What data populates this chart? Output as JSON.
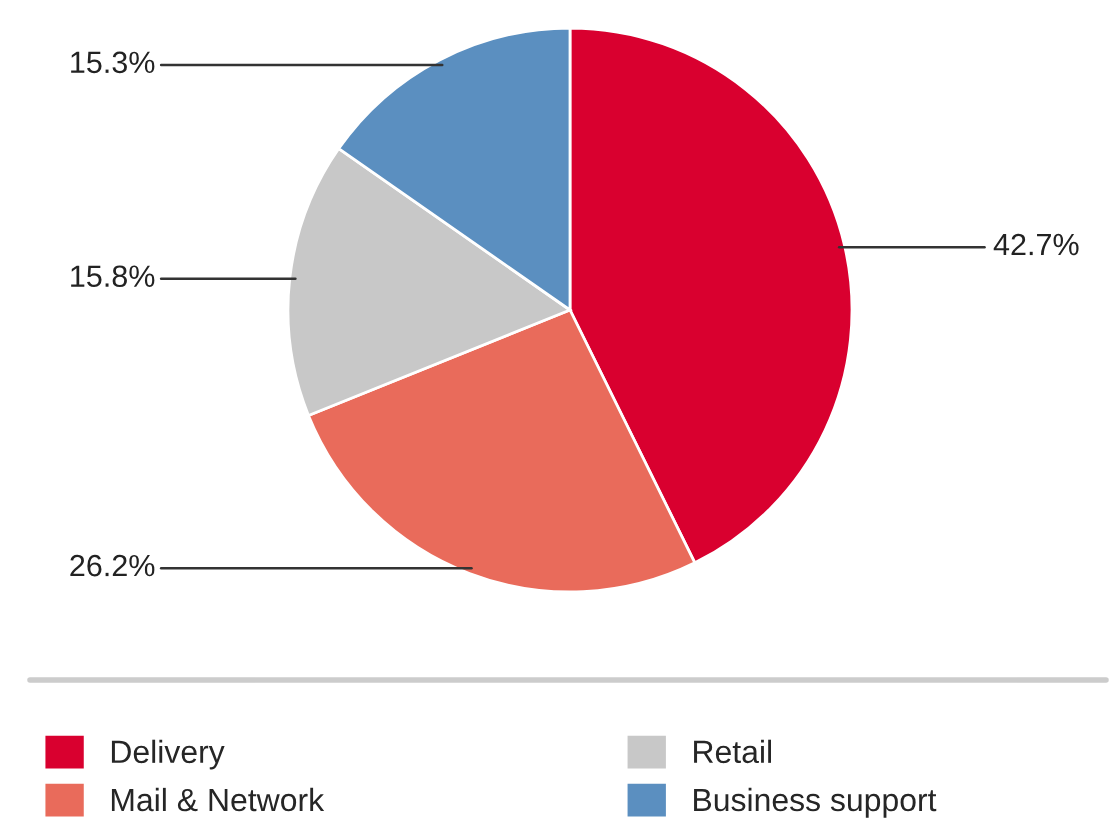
{
  "chart_data": {
    "type": "pie",
    "categories": [
      "Delivery",
      "Mail & Network",
      "Retail",
      "Business support"
    ],
    "values": [
      42.7,
      26.2,
      15.8,
      15.3
    ],
    "colors": [
      "#d9002f",
      "#e96b5b",
      "#c8c8c8",
      "#5b8fc0"
    ],
    "value_labels": [
      "42.7%",
      "26.2%",
      "15.8%",
      "15.3%"
    ],
    "legend": "bottom"
  }
}
